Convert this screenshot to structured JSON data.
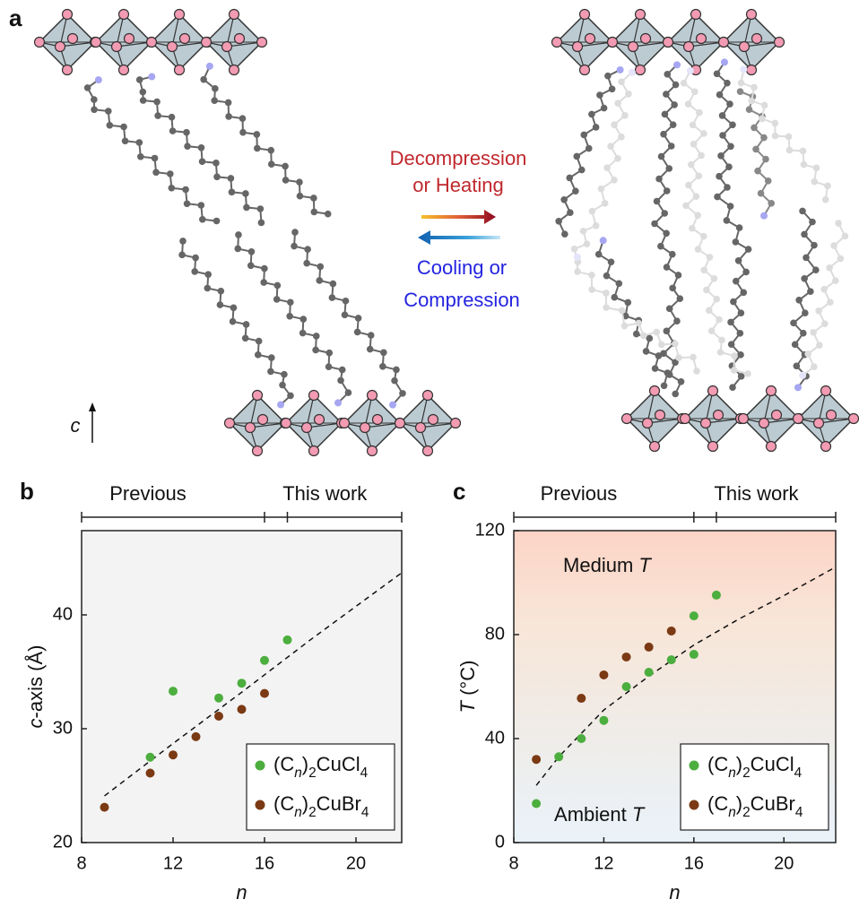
{
  "panel_labels": [
    "a",
    "b",
    "c"
  ],
  "diagram": {
    "forward": [
      "Decompression",
      "or Heating"
    ],
    "backward": [
      "Cooling or",
      "Compression"
    ],
    "axis": "c"
  },
  "chart_data": [
    {
      "type": "scatter",
      "xlabel": "n",
      "ylabel": "c-axis (Å)",
      "xlim": [
        8,
        22
      ],
      "ylim": [
        20,
        47.4
      ],
      "xticks": [
        8,
        12,
        16,
        20
      ],
      "yticks": [
        20,
        30,
        40
      ],
      "bracket": {
        "labels": [
          "Previous",
          "This work"
        ],
        "ticks": [
          8,
          16,
          17,
          22
        ]
      },
      "legend": "lower right",
      "series": [
        {
          "name": "(Cn)2CuCl4",
          "color": "#4cae3e",
          "x": [
            11,
            12,
            14,
            15,
            16,
            17
          ],
          "values": [
            27.5,
            33.3,
            32.7,
            34.0,
            36.0,
            37.8
          ]
        },
        {
          "name": "(Cn)2CuBr4",
          "color": "#7b3a14",
          "x": [
            9,
            11,
            12,
            13,
            14,
            15,
            16
          ],
          "values": [
            23.1,
            26.1,
            27.7,
            29.3,
            31.1,
            31.7,
            33.1
          ]
        }
      ],
      "fit": {
        "style": "dashed",
        "x": [
          9,
          12,
          15,
          18,
          22
        ],
        "values": [
          24.1,
          28.7,
          33.2,
          37.8,
          43.7
        ]
      }
    },
    {
      "type": "scatter",
      "xlabel": "n",
      "ylabel": "T (°C)",
      "xlim": [
        8,
        22.3
      ],
      "ylim": [
        0,
        120
      ],
      "xticks": [
        8,
        12,
        16,
        20
      ],
      "yticks": [
        0,
        40,
        80,
        120
      ],
      "bracket": {
        "labels": [
          "Previous",
          "This work"
        ],
        "ticks": [
          8,
          16,
          17,
          22.3
        ]
      },
      "legend": "lower right",
      "annotations": [
        "Medium T",
        "Ambient T"
      ],
      "series": [
        {
          "name": "(Cn)2CuCl4",
          "color": "#4cae3e",
          "x": [
            9,
            10,
            11,
            12,
            13,
            14,
            15,
            16,
            16,
            17
          ],
          "values": [
            15,
            33,
            40,
            47,
            60,
            65.5,
            70.3,
            72.4,
            87.2,
            95.2
          ]
        },
        {
          "name": "(Cn)2CuBr4",
          "color": "#7b3a14",
          "x": [
            9,
            11,
            12,
            13,
            14,
            15
          ],
          "values": [
            32,
            55.5,
            64.5,
            71.4,
            75.2,
            81.4
          ]
        }
      ],
      "fit": {
        "style": "dashed",
        "x": [
          9,
          10,
          12,
          14,
          16,
          18,
          20,
          22.3
        ],
        "values": [
          22,
          33,
          51,
          64,
          76,
          86,
          95,
          106
        ]
      }
    }
  ]
}
